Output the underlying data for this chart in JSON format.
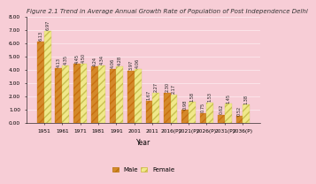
{
  "title": "Figure 2.1 Trend in Average Annual Growth Rate of Population of Post Independence Delhi",
  "categories": [
    "1951",
    "1961",
    "1971",
    "1981",
    "1991",
    "2001",
    "2011",
    "2016(P)",
    "2021(P)",
    "2026(P)",
    "2031(P)",
    "2036(P)"
  ],
  "male": [
    6.13,
    4.13,
    4.45,
    4.24,
    4.06,
    3.97,
    1.67,
    2.3,
    0.98,
    0.75,
    0.62,
    0.52
  ],
  "female": [
    6.97,
    4.35,
    4.5,
    4.34,
    4.28,
    4.06,
    2.27,
    2.17,
    1.58,
    1.53,
    1.45,
    1.38
  ],
  "male_color": "#d4892a",
  "female_color": "#f0e88a",
  "bg_color": "#f7cdd6",
  "plot_bg_color": "#f7cdd6",
  "xlabel": "Year",
  "ylim": [
    0,
    8.0
  ],
  "yticks": [
    0.0,
    1.0,
    2.0,
    3.0,
    4.0,
    5.0,
    6.0,
    7.0,
    8.0
  ],
  "bar_width": 0.38,
  "title_fontsize": 5.0,
  "axis_fontsize": 5.5,
  "tick_fontsize": 4.2,
  "label_fontsize": 3.6,
  "legend_fontsize": 5.0
}
